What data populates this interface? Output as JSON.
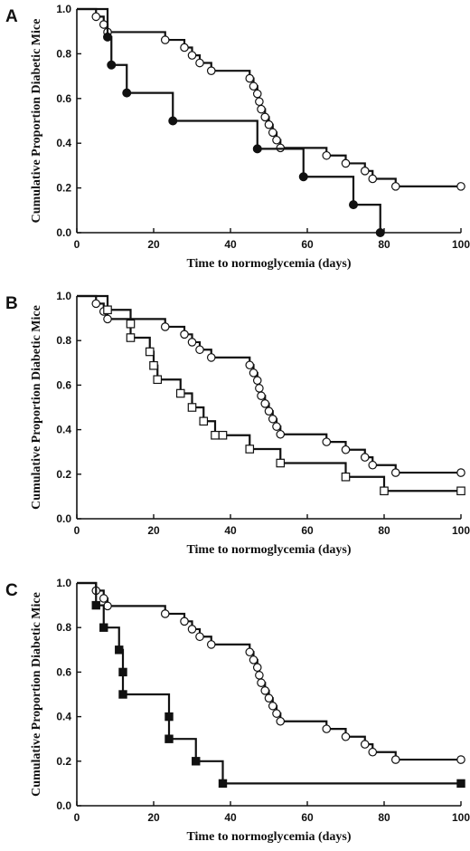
{
  "chart_data": [
    {
      "panel_label": "A",
      "type": "line",
      "xlabel": "Time to normoglycemia (days)",
      "ylabel": "Cumulative Proportion Diabetic Mice",
      "xlim": [
        0,
        100
      ],
      "ylim": [
        0,
        1.0
      ],
      "x_ticks": [
        "0",
        "20",
        "40",
        "60",
        "80",
        "100"
      ],
      "y_ticks": [
        "0.0",
        "0.2",
        "0.4",
        "0.6",
        "0.8",
        "1.0"
      ],
      "series": [
        {
          "marker": "open-circle",
          "steps": [
            [
              0,
              1.0
            ],
            [
              5,
              0.966
            ],
            [
              7,
              0.931
            ],
            [
              8,
              0.897
            ],
            [
              23,
              0.862
            ],
            [
              28,
              0.828
            ],
            [
              30,
              0.793
            ],
            [
              32,
              0.759
            ],
            [
              35,
              0.724
            ],
            [
              45,
              0.69
            ],
            [
              46,
              0.655
            ],
            [
              47,
              0.621
            ],
            [
              47.5,
              0.586
            ],
            [
              48,
              0.552
            ],
            [
              49,
              0.517
            ],
            [
              50,
              0.483
            ],
            [
              51,
              0.448
            ],
            [
              52,
              0.414
            ],
            [
              53,
              0.379
            ],
            [
              65,
              0.345
            ],
            [
              70,
              0.31
            ],
            [
              75,
              0.276
            ],
            [
              77,
              0.241
            ],
            [
              83,
              0.207
            ],
            [
              100,
              0.207
            ]
          ]
        },
        {
          "marker": "filled-circle",
          "steps": [
            [
              0,
              1.0
            ],
            [
              8,
              0.875
            ],
            [
              9,
              0.75
            ],
            [
              13,
              0.625
            ],
            [
              25,
              0.5
            ],
            [
              47,
              0.375
            ],
            [
              59,
              0.25
            ],
            [
              72,
              0.125
            ],
            [
              79,
              0.0
            ]
          ]
        }
      ]
    },
    {
      "panel_label": "B",
      "type": "line",
      "xlabel": "Time to normoglycemia (days)",
      "ylabel": "Cumulative Proportion Diabetic Mice",
      "xlim": [
        0,
        100
      ],
      "ylim": [
        0,
        1.0
      ],
      "x_ticks": [
        "0",
        "20",
        "40",
        "60",
        "80",
        "100"
      ],
      "y_ticks": [
        "0.0",
        "0.2",
        "0.4",
        "0.6",
        "0.8",
        "1.0"
      ],
      "series": [
        {
          "marker": "open-circle",
          "steps": [
            [
              0,
              1.0
            ],
            [
              5,
              0.966
            ],
            [
              7,
              0.931
            ],
            [
              8,
              0.897
            ],
            [
              23,
              0.862
            ],
            [
              28,
              0.828
            ],
            [
              30,
              0.793
            ],
            [
              32,
              0.759
            ],
            [
              35,
              0.724
            ],
            [
              45,
              0.69
            ],
            [
              46,
              0.655
            ],
            [
              47,
              0.621
            ],
            [
              47.5,
              0.586
            ],
            [
              48,
              0.552
            ],
            [
              49,
              0.517
            ],
            [
              50,
              0.483
            ],
            [
              51,
              0.448
            ],
            [
              52,
              0.414
            ],
            [
              53,
              0.379
            ],
            [
              65,
              0.345
            ],
            [
              70,
              0.31
            ],
            [
              75,
              0.276
            ],
            [
              77,
              0.241
            ],
            [
              83,
              0.207
            ],
            [
              100,
              0.207
            ]
          ]
        },
        {
          "marker": "open-square",
          "steps": [
            [
              0,
              1.0
            ],
            [
              8,
              0.938
            ],
            [
              14,
              0.875
            ],
            [
              14,
              0.813
            ],
            [
              19,
              0.75
            ],
            [
              20,
              0.688
            ],
            [
              21,
              0.625
            ],
            [
              27,
              0.563
            ],
            [
              30,
              0.5
            ],
            [
              33,
              0.438
            ],
            [
              36,
              0.375
            ],
            [
              38,
              0.375
            ],
            [
              45,
              0.313
            ],
            [
              53,
              0.25
            ],
            [
              70,
              0.188
            ],
            [
              80,
              0.125
            ],
            [
              100,
              0.125
            ]
          ]
        }
      ]
    },
    {
      "panel_label": "C",
      "type": "line",
      "xlabel": "Time to normoglycemia (days)",
      "ylabel": "Cumulative Proportion Diabetic Mice",
      "xlim": [
        0,
        100
      ],
      "ylim": [
        0,
        1.0
      ],
      "x_ticks": [
        "0",
        "20",
        "40",
        "60",
        "80",
        "100"
      ],
      "y_ticks": [
        "0.0",
        "0.2",
        "0.4",
        "0.6",
        "0.8",
        "1.0"
      ],
      "series": [
        {
          "marker": "open-circle",
          "steps": [
            [
              0,
              1.0
            ],
            [
              5,
              0.966
            ],
            [
              7,
              0.931
            ],
            [
              8,
              0.897
            ],
            [
              23,
              0.862
            ],
            [
              28,
              0.828
            ],
            [
              30,
              0.793
            ],
            [
              32,
              0.759
            ],
            [
              35,
              0.724
            ],
            [
              45,
              0.69
            ],
            [
              46,
              0.655
            ],
            [
              47,
              0.621
            ],
            [
              47.5,
              0.586
            ],
            [
              48,
              0.552
            ],
            [
              49,
              0.517
            ],
            [
              50,
              0.483
            ],
            [
              51,
              0.448
            ],
            [
              52,
              0.414
            ],
            [
              53,
              0.379
            ],
            [
              65,
              0.345
            ],
            [
              70,
              0.31
            ],
            [
              75,
              0.276
            ],
            [
              77,
              0.241
            ],
            [
              83,
              0.207
            ],
            [
              100,
              0.207
            ]
          ]
        },
        {
          "marker": "filled-square",
          "steps": [
            [
              0,
              1.0
            ],
            [
              5,
              0.9
            ],
            [
              7,
              0.8
            ],
            [
              11,
              0.7
            ],
            [
              12,
              0.6
            ],
            [
              12,
              0.5
            ],
            [
              24,
              0.4
            ],
            [
              24,
              0.3
            ],
            [
              31,
              0.2
            ],
            [
              38,
              0.1
            ],
            [
              100,
              0.1
            ]
          ]
        }
      ]
    }
  ]
}
